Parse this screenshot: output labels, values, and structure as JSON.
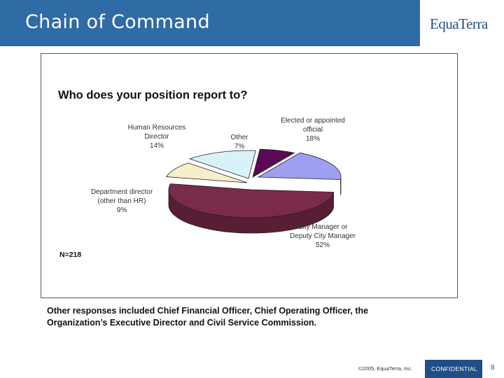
{
  "header": {
    "title": "Chain of Command",
    "logo_text": "EquaTerra"
  },
  "chart_data": {
    "type": "pie",
    "title": "Who does your position report to?",
    "sample_note": "N=218",
    "slices": [
      {
        "label_lines": [
          "City Manager or",
          "Deputy City Manager"
        ],
        "value": 52,
        "percent_label": "52%",
        "color": "#7a2a4a"
      },
      {
        "label_lines": [
          "Department director",
          "(other than HR)"
        ],
        "value": 9,
        "percent_label": "9%",
        "color": "#f5f0c8"
      },
      {
        "label_lines": [
          "Human Resources",
          "Director"
        ],
        "value": 14,
        "percent_label": "14%",
        "color": "#d8f3f8"
      },
      {
        "label_lines": [
          "Other"
        ],
        "value": 7,
        "percent_label": "7%",
        "color": "#5a0a55"
      },
      {
        "label_lines": [
          "Elected or appointed",
          "official"
        ],
        "value": 18,
        "percent_label": "18%",
        "color": "#9e9ff0"
      }
    ]
  },
  "caption": {
    "line1": "Other responses included Chief Financial Officer, Chief Operating Officer, the",
    "line2": "Organization’s Executive Director and Civil Service Commission."
  },
  "footer": {
    "copyright": "©2005, EquaTerra, Inc.",
    "confidential": "CONFIDENTIAL",
    "page_number": "8"
  }
}
